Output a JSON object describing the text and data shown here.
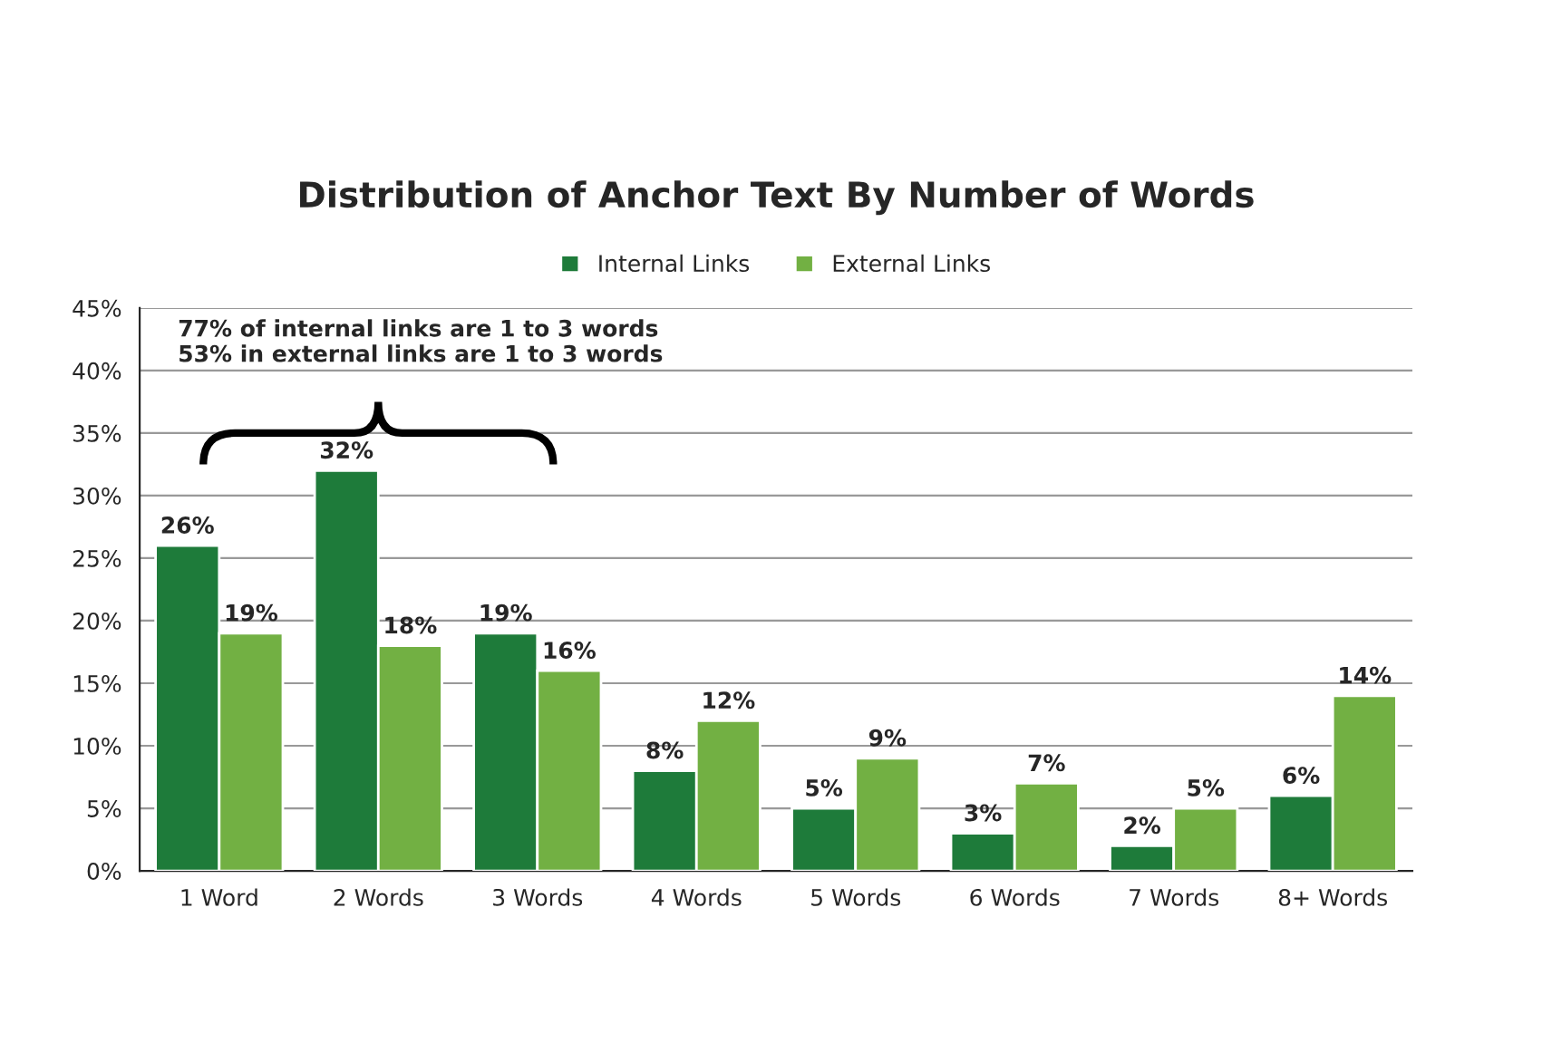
{
  "chart_data": {
    "type": "bar",
    "title": "Distribution of Anchor Text By Number of Words",
    "categories": [
      "1 Word",
      "2 Words",
      "3 Words",
      "4 Words",
      "5 Words",
      "6 Words",
      "7 Words",
      "8+ Words"
    ],
    "series": [
      {
        "name": "Internal Links",
        "color": "#1e7b3a",
        "values": [
          26,
          32,
          19,
          8,
          5,
          3,
          2,
          6
        ],
        "value_labels": [
          "26%",
          "32%",
          "19%",
          "8%",
          "5%",
          "3%",
          "2%",
          "6%"
        ]
      },
      {
        "name": "External Links",
        "color": "#72b043",
        "values": [
          19,
          18,
          16,
          12,
          9,
          7,
          5,
          14
        ],
        "value_labels": [
          "19%",
          "18%",
          "16%",
          "12%",
          "9%",
          "7%",
          "5%",
          "14%"
        ]
      }
    ],
    "ylim": [
      0,
      45
    ],
    "yticks": [
      {
        "value": 0,
        "label": "0%"
      },
      {
        "value": 5,
        "label": "5%"
      },
      {
        "value": 10,
        "label": "10%"
      },
      {
        "value": 15,
        "label": "15%"
      },
      {
        "value": 20,
        "label": "20%"
      },
      {
        "value": 25,
        "label": "25%"
      },
      {
        "value": 30,
        "label": "30%"
      },
      {
        "value": 35,
        "label": "35%"
      },
      {
        "value": 40,
        "label": "40%"
      },
      {
        "value": 45,
        "label": "45%"
      }
    ],
    "grid": "y",
    "legend": "top",
    "annotations": [
      "77% of internal links are 1 to 3 words",
      "53% in external links are 1 to 3 words"
    ]
  }
}
